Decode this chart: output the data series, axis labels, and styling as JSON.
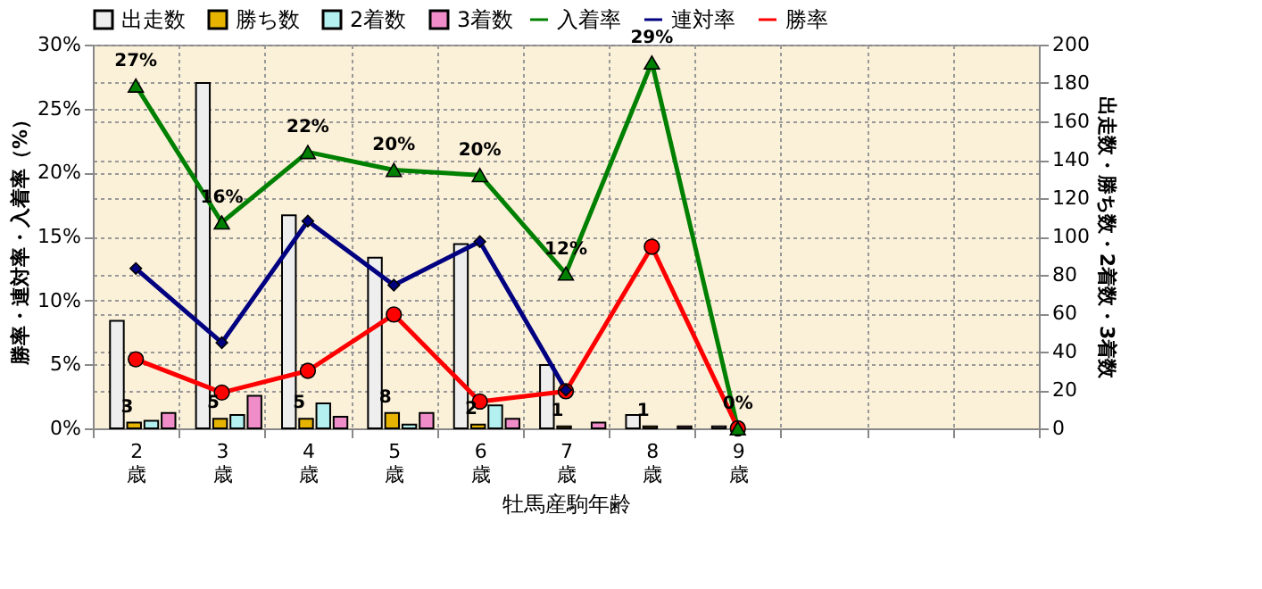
{
  "chart_data": {
    "type": "bar",
    "xlabel": "牡馬産駒年齢",
    "ylabel": "勝率・連対率・入着率（%）",
    "y2label": "出走数・勝ち数・2着数・3着数",
    "categories": [
      "2歳",
      "3歳",
      "4歳",
      "5歳",
      "6歳",
      "7歳",
      "8歳",
      "9歳",
      null,
      null,
      null
    ],
    "series": [
      {
        "name": "出走数",
        "axis": "y2",
        "color": "#eeeeee",
        "values": [
          56,
          180,
          111,
          89,
          96,
          33,
          7,
          1,
          null,
          null,
          null
        ]
      },
      {
        "name": "勝ち数",
        "axis": "y2",
        "color": "#e6b400",
        "values": [
          3,
          5,
          5,
          8,
          2,
          1,
          1,
          0,
          null,
          null,
          null
        ],
        "value_labels": [
          "3",
          "5",
          "5",
          "8",
          "2",
          "1",
          "1",
          null,
          null,
          null,
          null
        ]
      },
      {
        "name": "2着数",
        "axis": "y2",
        "color": "#b4f0f0",
        "values": [
          4,
          7,
          13,
          2,
          12,
          0,
          0,
          0,
          null,
          null,
          null
        ]
      },
      {
        "name": "3着数",
        "axis": "y2",
        "color": "#f08cc8",
        "values": [
          8,
          17,
          6,
          8,
          5,
          3,
          1,
          0,
          null,
          null,
          null
        ]
      },
      {
        "name": "入着率",
        "type": "line",
        "axis": "y",
        "color": "#008000",
        "marker": "triangle",
        "values": [
          26.8,
          16.1,
          21.6,
          20.2,
          19.8,
          12.1,
          28.6,
          0,
          null,
          null,
          null
        ],
        "value_labels": [
          "27%",
          "16%",
          "22%",
          "20%",
          "20%",
          "12%",
          "29%",
          "0%",
          null,
          null,
          null
        ]
      },
      {
        "name": "連対率",
        "type": "line",
        "axis": "y",
        "color": "#000080",
        "marker": "diamond",
        "values": [
          12.5,
          6.7,
          16.2,
          11.2,
          14.6,
          3.0,
          null,
          null,
          null,
          null,
          null
        ]
      },
      {
        "name": "勝率",
        "type": "line",
        "axis": "y",
        "color": "#ff0000",
        "marker": "circle",
        "values": [
          5.4,
          2.8,
          4.5,
          8.9,
          2.1,
          2.9,
          14.2,
          0,
          null,
          null,
          null
        ]
      }
    ],
    "ylim": [
      0,
      30
    ],
    "yticks": [
      {
        "value": 0,
        "label": "0%"
      },
      {
        "value": 5,
        "label": "5%"
      },
      {
        "value": 10,
        "label": "10%"
      },
      {
        "value": 15,
        "label": "15%"
      },
      {
        "value": 20,
        "label": "20%"
      },
      {
        "value": 25,
        "label": "25%"
      },
      {
        "value": 30,
        "label": "30%"
      }
    ],
    "y2lim": [
      0,
      200
    ],
    "y2ticks": [
      0,
      20,
      40,
      60,
      80,
      100,
      120,
      140,
      160,
      180,
      200
    ],
    "grid": true,
    "legend": "top"
  }
}
